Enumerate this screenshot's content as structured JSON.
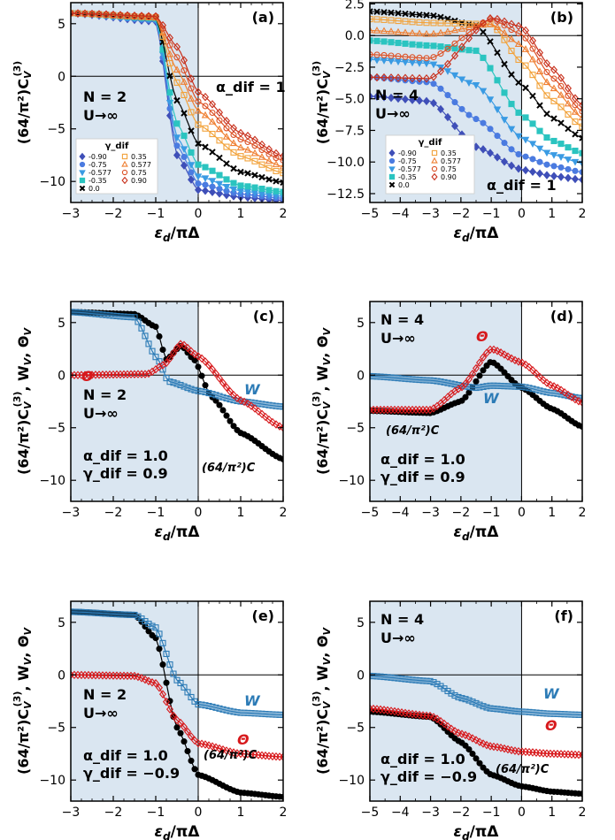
{
  "figure": {
    "ylabel_a": "(64/π²)C",
    "ylabel_sub": "V",
    "ylabel_sup": "(3)",
    "xlabel_main": "ε",
    "xlabel_sub": "d",
    "xlabel_rest": "/πΔ"
  },
  "colors": {
    "shade": "#dae6f1",
    "black": "#000000",
    "w": "#2c7bb6",
    "theta": "#d7191c"
  },
  "chart_data": [
    {
      "id": "a",
      "type": "line",
      "panel_label": "(a)",
      "xlim": [
        -3,
        2
      ],
      "ylim": [
        -12,
        7
      ],
      "xticks": [
        -3,
        -2,
        -1,
        0,
        1,
        2
      ],
      "yticks": [
        5,
        0,
        -5,
        -10
      ],
      "annotations": [
        "N = 2",
        "U→∞",
        "α_dif = 1"
      ],
      "legend_title": "γ_dif",
      "series": [
        {
          "name": "-0.90",
          "values": [
            [
              -3,
              6.0
            ],
            [
              -1,
              5.2
            ],
            [
              -0.5,
              -7.5
            ],
            [
              0,
              -10.8
            ],
            [
              1,
              -11.5
            ],
            [
              2,
              -11.8
            ]
          ]
        },
        {
          "name": "-0.75",
          "values": [
            [
              -3,
              6.0
            ],
            [
              -1,
              5.3
            ],
            [
              -0.5,
              -6.6
            ],
            [
              0,
              -10.2
            ],
            [
              1,
              -11.2
            ],
            [
              2,
              -11.6
            ]
          ]
        },
        {
          "name": "-0.577",
          "values": [
            [
              -3,
              6.0
            ],
            [
              -1,
              5.4
            ],
            [
              -0.5,
              -5.8
            ],
            [
              0,
              -9.5
            ],
            [
              1,
              -10.9
            ],
            [
              2,
              -11.4
            ]
          ]
        },
        {
          "name": "-0.35",
          "values": [
            [
              -3,
              6.0
            ],
            [
              -1,
              5.5
            ],
            [
              -0.5,
              -4.5
            ],
            [
              0,
              -8.4
            ],
            [
              1,
              -10.4
            ],
            [
              2,
              -11.0
            ]
          ]
        },
        {
          "name": "0.0",
          "values": [
            [
              -3,
              6.0
            ],
            [
              -1,
              5.6
            ],
            [
              -0.5,
              -2.3
            ],
            [
              0,
              -6.4
            ],
            [
              1,
              -9.1
            ],
            [
              2,
              -10.1
            ]
          ]
        },
        {
          "name": "0.35",
          "values": [
            [
              -3,
              6.0
            ],
            [
              -1,
              5.6
            ],
            [
              -0.5,
              -0.6
            ],
            [
              0,
              -4.6
            ],
            [
              1,
              -7.6
            ],
            [
              2,
              -9.2
            ]
          ]
        },
        {
          "name": "0.577",
          "values": [
            [
              -3,
              6.0
            ],
            [
              -1,
              5.6
            ],
            [
              -0.5,
              0.6
            ],
            [
              0,
              -3.3
            ],
            [
              1,
              -6.8
            ],
            [
              2,
              -8.6
            ]
          ]
        },
        {
          "name": "0.75",
          "values": [
            [
              -3,
              6.0
            ],
            [
              -1,
              5.7
            ],
            [
              -0.5,
              1.8
            ],
            [
              0,
              -2.4
            ],
            [
              1,
              -6.0
            ],
            [
              2,
              -8.0
            ]
          ]
        },
        {
          "name": "0.90",
          "values": [
            [
              -3,
              6.0
            ],
            [
              -1,
              5.7
            ],
            [
              -0.5,
              2.8
            ],
            [
              0,
              -1.5
            ],
            [
              1,
              -5.4
            ],
            [
              2,
              -7.6
            ]
          ]
        }
      ]
    },
    {
      "id": "b",
      "type": "line",
      "panel_label": "(b)",
      "xlim": [
        -5,
        2
      ],
      "ylim": [
        -13.2,
        2.6
      ],
      "xticks": [
        -5,
        -4,
        -3,
        -2,
        -1,
        0,
        1,
        2
      ],
      "yticks": [
        2.5,
        0.0,
        -2.5,
        -5.0,
        -7.5,
        -10.0,
        -12.5
      ],
      "annotations": [
        "N = 4",
        "U→∞",
        "α_dif = 1"
      ],
      "legend_title": "γ_dif",
      "series": [
        {
          "name": "-0.90",
          "values": [
            [
              -5,
              -4.8
            ],
            [
              -3,
              -5.2
            ],
            [
              -1.5,
              -8.8
            ],
            [
              0,
              -10.6
            ],
            [
              1,
              -11.1
            ],
            [
              2,
              -11.4
            ]
          ]
        },
        {
          "name": "-0.75",
          "values": [
            [
              -5,
              -3.3
            ],
            [
              -3,
              -3.7
            ],
            [
              -1.5,
              -6.6
            ],
            [
              0,
              -9.5
            ],
            [
              1,
              -10.3
            ],
            [
              2,
              -10.8
            ]
          ]
        },
        {
          "name": "-0.577",
          "values": [
            [
              -5,
              -1.9
            ],
            [
              -3,
              -2.2
            ],
            [
              -1.5,
              -3.9
            ],
            [
              0,
              -8.1
            ],
            [
              1,
              -9.4
            ],
            [
              2,
              -10.1
            ]
          ]
        },
        {
          "name": "-0.35",
          "values": [
            [
              -5,
              -0.4
            ],
            [
              -3,
              -0.8
            ],
            [
              -1.5,
              -1.2
            ],
            [
              0,
              -6.3
            ],
            [
              1,
              -8.3
            ],
            [
              2,
              -9.3
            ]
          ]
        },
        {
          "name": "0.0",
          "values": [
            [
              -5,
              1.9
            ],
            [
              -3,
              1.6
            ],
            [
              -1.5,
              0.8
            ],
            [
              0,
              -3.9
            ],
            [
              1,
              -6.5
            ],
            [
              2,
              -8.1
            ]
          ]
        },
        {
          "name": "0.35",
          "values": [
            [
              -5,
              1.3
            ],
            [
              -3,
              1.0
            ],
            [
              -1,
              0.9
            ],
            [
              0,
              -2.1
            ],
            [
              1,
              -5.1
            ],
            [
              2,
              -7.2
            ]
          ]
        },
        {
          "name": "0.577",
          "values": [
            [
              -5,
              0.4
            ],
            [
              -3,
              0.1
            ],
            [
              -1,
              0.9
            ],
            [
              0,
              -0.8
            ],
            [
              1,
              -4.1
            ],
            [
              2,
              -6.5
            ]
          ]
        },
        {
          "name": "0.75",
          "values": [
            [
              -5,
              -1.5
            ],
            [
              -3,
              -1.8
            ],
            [
              -1,
              1.3
            ],
            [
              0,
              0.1
            ],
            [
              1,
              -3.3
            ],
            [
              2,
              -6.0
            ]
          ]
        },
        {
          "name": "0.90",
          "values": [
            [
              -5,
              -3.3
            ],
            [
              -3,
              -3.4
            ],
            [
              -1,
              1.4
            ],
            [
              0,
              0.7
            ],
            [
              1,
              -2.6
            ],
            [
              2,
              -5.5
            ]
          ]
        }
      ]
    },
    {
      "id": "c",
      "type": "line",
      "panel_label": "(c)",
      "ylabel": "(64/π²)C_V^(3), W_V, Θ_V",
      "xlim": [
        -3,
        2
      ],
      "ylim": [
        -12,
        7
      ],
      "xticks": [
        -3,
        -2,
        -1,
        0,
        1,
        2
      ],
      "yticks": [
        5,
        0,
        -5,
        -10
      ],
      "annotations": [
        "N = 2",
        "U→∞",
        "α_dif = 1.0",
        "γ_dif = 0.9"
      ],
      "series": [
        {
          "name": "(64/π²)C_V",
          "values": [
            [
              -3,
              6.0
            ],
            [
              -1.5,
              5.8
            ],
            [
              -1,
              4.6
            ],
            [
              -0.75,
              1.5
            ],
            [
              -0.4,
              2.8
            ],
            [
              -0.1,
              1.5
            ],
            [
              0.3,
              -2.0
            ],
            [
              1,
              -5.5
            ],
            [
              2,
              -8.0
            ]
          ]
        },
        {
          "name": "W_V",
          "values": [
            [
              -3,
              6.0
            ],
            [
              -1.5,
              5.5
            ],
            [
              -0.95,
              1.5
            ],
            [
              -0.7,
              -0.6
            ],
            [
              0,
              -1.5
            ],
            [
              1,
              -2.5
            ],
            [
              2,
              -3.0
            ]
          ]
        },
        {
          "name": "Θ_V",
          "values": [
            [
              -3,
              0.0
            ],
            [
              -1.2,
              0.1
            ],
            [
              -0.8,
              1.0
            ],
            [
              -0.4,
              3.0
            ],
            [
              0,
              1.8
            ],
            [
              1,
              -2.4
            ],
            [
              2,
              -5.0
            ]
          ]
        }
      ]
    },
    {
      "id": "d",
      "type": "line",
      "panel_label": "(d)",
      "ylabel": "(64/π²)C_V^(3), W_V, Θ_V",
      "xlim": [
        -5,
        2
      ],
      "ylim": [
        -12,
        7
      ],
      "xticks": [
        -5,
        -4,
        -3,
        -2,
        -1,
        0,
        1,
        2
      ],
      "yticks": [
        5,
        0,
        -5,
        -10
      ],
      "annotations": [
        "N = 4",
        "U→∞",
        "α_dif = 1.0",
        "γ_dif = 0.9"
      ],
      "series": [
        {
          "name": "(64/π²)C_V",
          "values": [
            [
              -5,
              -3.4
            ],
            [
              -3,
              -3.6
            ],
            [
              -2,
              -2.5
            ],
            [
              -1,
              1.3
            ],
            [
              0,
              -1.2
            ],
            [
              1,
              -3.2
            ],
            [
              2,
              -4.9
            ]
          ]
        },
        {
          "name": "W_V",
          "values": [
            [
              -5,
              -0.1
            ],
            [
              -3,
              -0.5
            ],
            [
              -1.5,
              -1.2
            ],
            [
              -1,
              -1.0
            ],
            [
              0,
              -1.1
            ],
            [
              1,
              -1.7
            ],
            [
              2,
              -2.2
            ]
          ]
        },
        {
          "name": "Θ_V",
          "values": [
            [
              -5,
              -3.3
            ],
            [
              -3,
              -3.3
            ],
            [
              -2,
              -1.2
            ],
            [
              -1,
              2.5
            ],
            [
              0,
              1.2
            ],
            [
              1,
              -1.0
            ],
            [
              2,
              -2.6
            ]
          ]
        }
      ]
    },
    {
      "id": "e",
      "type": "line",
      "panel_label": "(e)",
      "ylabel": "(64/π²)C_V^(3), W_V, Θ_V",
      "xlim": [
        -3,
        2
      ],
      "ylim": [
        -12,
        7
      ],
      "xticks": [
        -3,
        -2,
        -1,
        0,
        1,
        2
      ],
      "yticks": [
        5,
        0,
        -5,
        -10
      ],
      "annotations": [
        "N = 2",
        "U→∞",
        "α_dif = 1.0",
        "γ_dif = −0.9"
      ],
      "series": [
        {
          "name": "(64/π²)C_V",
          "values": [
            [
              -3,
              6.0
            ],
            [
              -1.5,
              5.7
            ],
            [
              -1,
              3.5
            ],
            [
              -0.5,
              -5.0
            ],
            [
              0,
              -9.5
            ],
            [
              1,
              -11.2
            ],
            [
              2,
              -11.6
            ]
          ]
        },
        {
          "name": "W_V",
          "values": [
            [
              -3,
              6.0
            ],
            [
              -1.5,
              5.7
            ],
            [
              -1,
              4.5
            ],
            [
              -0.5,
              -0.5
            ],
            [
              0,
              -2.8
            ],
            [
              1,
              -3.6
            ],
            [
              2,
              -3.8
            ]
          ]
        },
        {
          "name": "Θ_V",
          "values": [
            [
              -3,
              0.0
            ],
            [
              -1.5,
              -0.1
            ],
            [
              -1,
              -0.8
            ],
            [
              -0.5,
              -4.3
            ],
            [
              0,
              -6.5
            ],
            [
              1,
              -7.5
            ],
            [
              2,
              -7.8
            ]
          ]
        }
      ]
    },
    {
      "id": "f",
      "type": "line",
      "panel_label": "(f)",
      "ylabel": "(64/π²)C_V^(3), W_V, Θ_V",
      "xlim": [
        -5,
        2
      ],
      "ylim": [
        -12,
        7
      ],
      "xticks": [
        -5,
        -4,
        -3,
        -2,
        -1,
        0,
        1,
        2
      ],
      "yticks": [
        5,
        0,
        -5,
        -10
      ],
      "annotations": [
        "N = 4",
        "U→∞",
        "α_dif = 1.0",
        "γ_dif = −0.9"
      ],
      "series": [
        {
          "name": "(64/π²)C_V",
          "values": [
            [
              -5,
              -3.5
            ],
            [
              -3,
              -4.0
            ],
            [
              -2,
              -6.4
            ],
            [
              -1,
              -9.5
            ],
            [
              0,
              -10.6
            ],
            [
              1,
              -11.1
            ],
            [
              2,
              -11.3
            ]
          ]
        },
        {
          "name": "W_V",
          "values": [
            [
              -5,
              -0.1
            ],
            [
              -3,
              -0.6
            ],
            [
              -2,
              -2.2
            ],
            [
              -1,
              -3.2
            ],
            [
              0,
              -3.5
            ],
            [
              1,
              -3.7
            ],
            [
              2,
              -3.8
            ]
          ]
        },
        {
          "name": "Θ_V",
          "values": [
            [
              -5,
              -3.2
            ],
            [
              -3,
              -3.9
            ],
            [
              -2,
              -5.6
            ],
            [
              -1,
              -6.8
            ],
            [
              0,
              -7.3
            ],
            [
              1,
              -7.5
            ],
            [
              2,
              -7.6
            ]
          ]
        }
      ]
    }
  ]
}
